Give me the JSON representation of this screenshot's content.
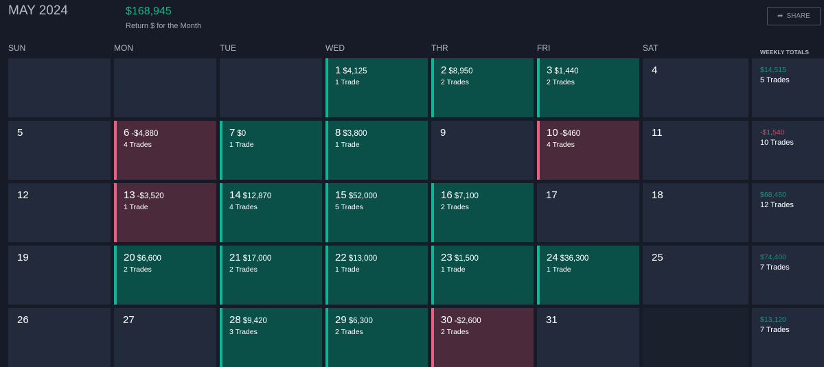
{
  "header": {
    "title": "MAY 2024",
    "month_return": "$168,945",
    "month_return_label": "Return $ for the Month",
    "share_label": "SHARE"
  },
  "weekdays": [
    "SUN",
    "MON",
    "TUE",
    "WED",
    "THR",
    "FRI",
    "SAT"
  ],
  "weekly_totals_label": "WEEKLY TOTALS",
  "colors": {
    "positive": "#10b595",
    "negative": "#e8607f"
  },
  "weeks": [
    {
      "days": [
        null,
        null,
        null,
        {
          "d": "1",
          "pnl": "$4,125",
          "trades": "1 Trade",
          "s": "g"
        },
        {
          "d": "2",
          "pnl": "$8,950",
          "trades": "2 Trades",
          "s": "g"
        },
        {
          "d": "3",
          "pnl": "$1,440",
          "trades": "2 Trades",
          "s": "g"
        },
        {
          "d": "4"
        }
      ],
      "total": "$14,515",
      "total_trades": "5 Trades",
      "ts": "g"
    },
    {
      "days": [
        {
          "d": "5"
        },
        {
          "d": "6",
          "pnl": "-$4,880",
          "trades": "4 Trades",
          "s": "r"
        },
        {
          "d": "7",
          "pnl": "$0",
          "trades": "1 Trade",
          "s": "g"
        },
        {
          "d": "8",
          "pnl": "$3,800",
          "trades": "1 Trade",
          "s": "g"
        },
        {
          "d": "9"
        },
        {
          "d": "10",
          "pnl": "-$460",
          "trades": "4 Trades",
          "s": "r"
        },
        {
          "d": "11"
        }
      ],
      "total": "-$1,540",
      "total_trades": "10 Trades",
      "ts": "r"
    },
    {
      "days": [
        {
          "d": "12"
        },
        {
          "d": "13",
          "pnl": "-$3,520",
          "trades": "1 Trade",
          "s": "r"
        },
        {
          "d": "14",
          "pnl": "$12,870",
          "trades": "4 Trades",
          "s": "g"
        },
        {
          "d": "15",
          "pnl": "$52,000",
          "trades": "5 Trades",
          "s": "g"
        },
        {
          "d": "16",
          "pnl": "$7,100",
          "trades": "2 Trades",
          "s": "g"
        },
        {
          "d": "17"
        },
        {
          "d": "18"
        }
      ],
      "total": "$68,450",
      "total_trades": "12 Trades",
      "ts": "g"
    },
    {
      "days": [
        {
          "d": "19"
        },
        {
          "d": "20",
          "pnl": "$6,600",
          "trades": "2 Trades",
          "s": "g"
        },
        {
          "d": "21",
          "pnl": "$17,000",
          "trades": "2 Trades",
          "s": "g"
        },
        {
          "d": "22",
          "pnl": "$13,000",
          "trades": "1 Trade",
          "s": "g"
        },
        {
          "d": "23",
          "pnl": "$1,500",
          "trades": "1 Trade",
          "s": "g"
        },
        {
          "d": "24",
          "pnl": "$36,300",
          "trades": "1 Trade",
          "s": "g"
        },
        {
          "d": "25"
        }
      ],
      "total": "$74,400",
      "total_trades": "7 Trades",
      "ts": "g"
    },
    {
      "days": [
        {
          "d": "26"
        },
        {
          "d": "27"
        },
        {
          "d": "28",
          "pnl": "$9,420",
          "trades": "3 Trades",
          "s": "g"
        },
        {
          "d": "29",
          "pnl": "$6,300",
          "trades": "2 Trades",
          "s": "g"
        },
        {
          "d": "30",
          "pnl": "-$2,600",
          "trades": "2 Trades",
          "s": "r"
        },
        {
          "d": "31"
        },
        {
          "d": "",
          "s": "x"
        }
      ],
      "total": "$13,120",
      "total_trades": "7 Trades",
      "ts": "g"
    }
  ]
}
